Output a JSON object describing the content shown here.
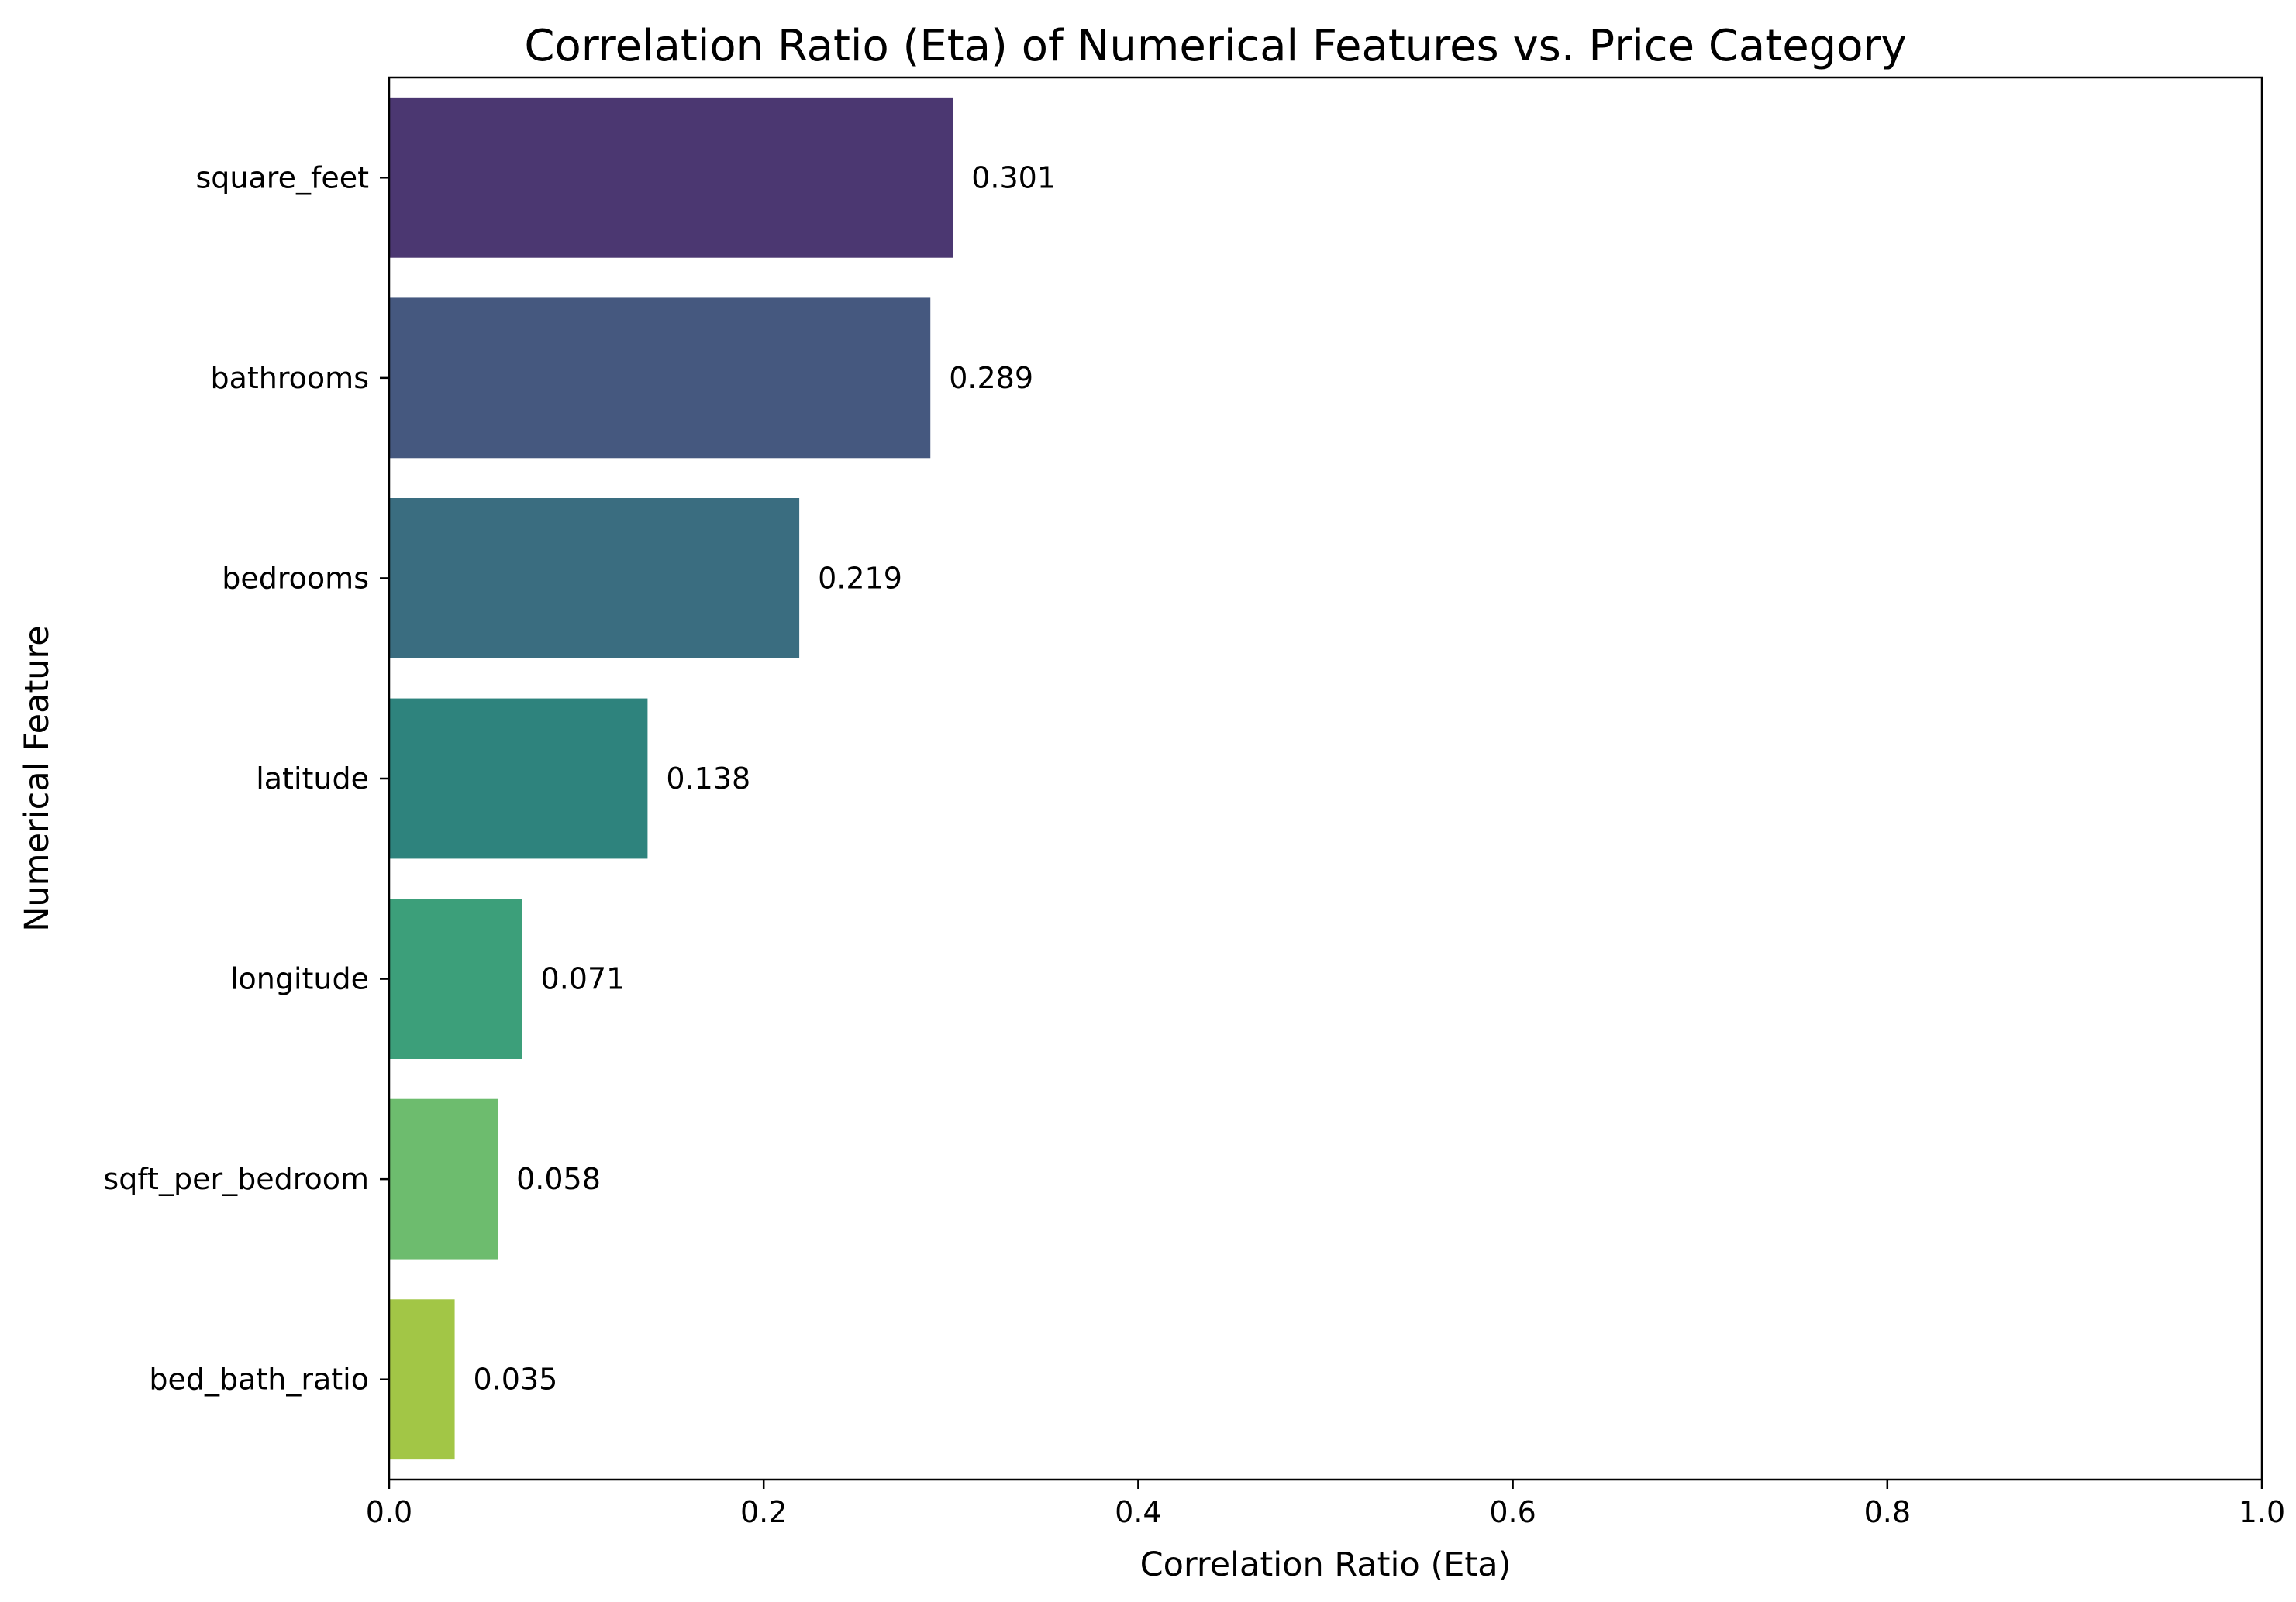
{
  "chart_data": {
    "type": "bar",
    "orientation": "horizontal",
    "title": "Correlation Ratio (Eta) of Numerical Features vs. Price Category",
    "xlabel": "Correlation Ratio (Eta)",
    "ylabel": "Numerical Feature",
    "xlim": [
      0.0,
      1.0
    ],
    "xticks": [
      0.0,
      0.2,
      0.4,
      0.6,
      0.8,
      1.0
    ],
    "xtick_labels": [
      "0.0",
      "0.2",
      "0.4",
      "0.6",
      "0.8",
      "1.0"
    ],
    "grid": false,
    "categories": [
      "square_feet",
      "bathrooms",
      "bedrooms",
      "latitude",
      "longitude",
      "sqft_per_bedroom",
      "bed_bath_ratio"
    ],
    "values": [
      0.301,
      0.289,
      0.219,
      0.138,
      0.071,
      0.058,
      0.035
    ],
    "data_labels": [
      "0.301",
      "0.289",
      "0.219",
      "0.138",
      "0.071",
      "0.058",
      "0.035"
    ],
    "colors": [
      "#4b3771",
      "#45587f",
      "#3a6d80",
      "#2e837d",
      "#3c9f7a",
      "#6dbc6e",
      "#a2c646"
    ]
  }
}
